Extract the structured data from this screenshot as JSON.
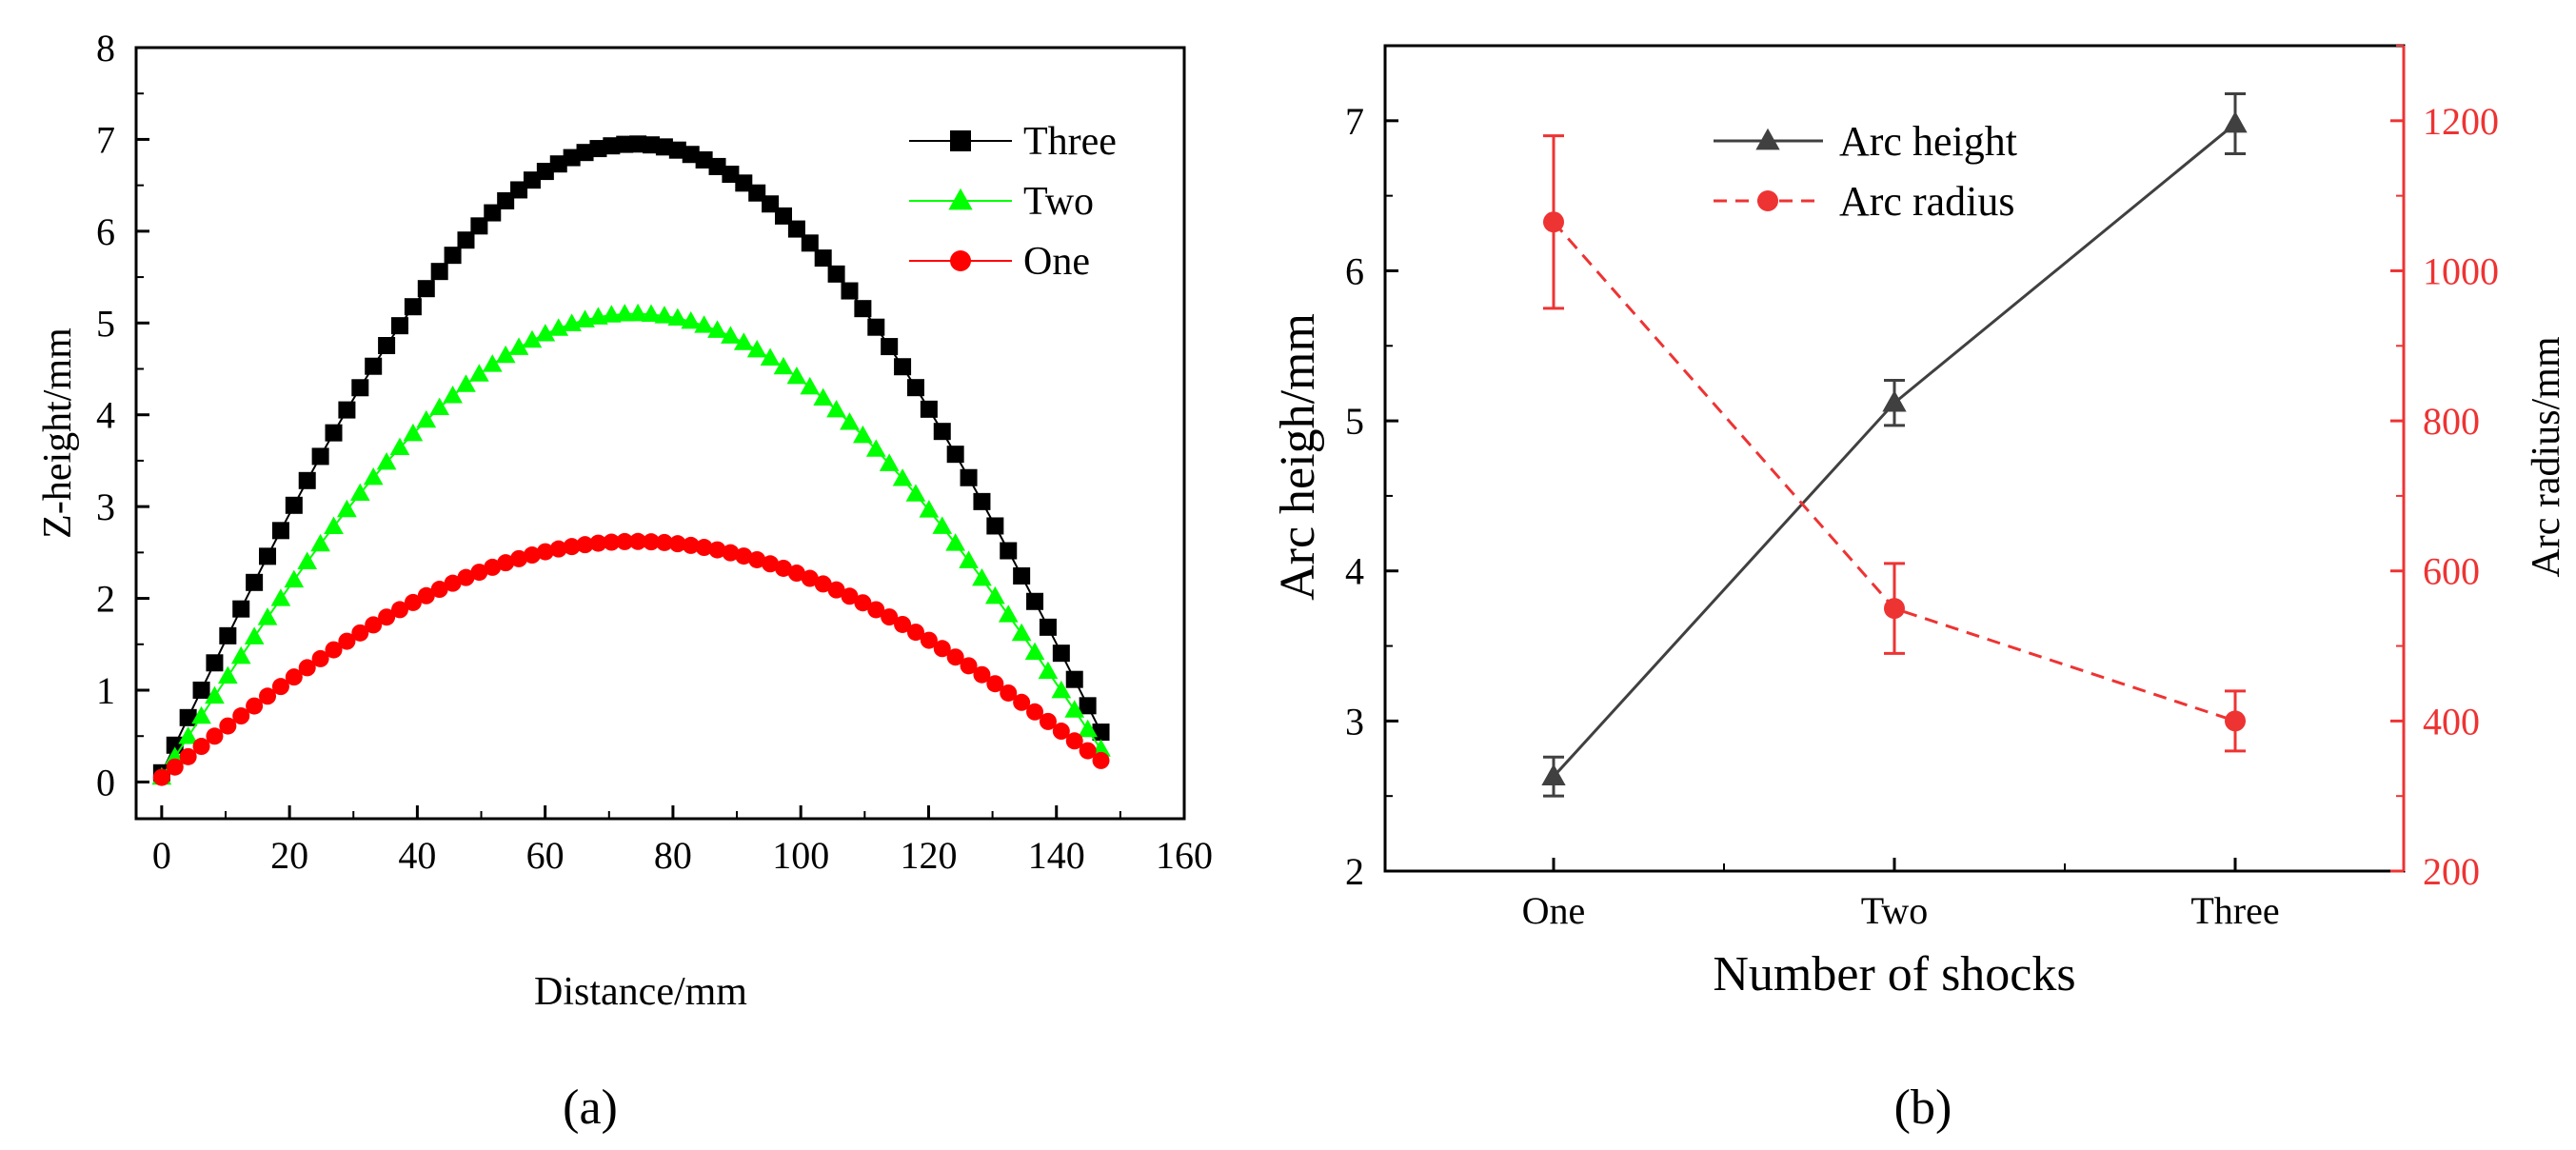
{
  "chart_data": [
    {
      "id": "a",
      "panel_label": "(a)",
      "type": "scatter",
      "title": "",
      "xlabel": "Distance/mm",
      "ylabel": "Z-height/mm",
      "xlim": [
        -4,
        160
      ],
      "ylim": [
        -0.4,
        8
      ],
      "xticks": [
        "0",
        "20",
        "40",
        "60",
        "80",
        "100",
        "120",
        "140",
        "160"
      ],
      "yticks": [
        "0",
        "1",
        "2",
        "3",
        "4",
        "5",
        "6",
        "7",
        "8"
      ],
      "legend_position": "top-right",
      "series": [
        {
          "name": "Three",
          "color": "#000000",
          "marker": "square",
          "x_start": 0,
          "x_step": 2.07,
          "count": 72,
          "peak": 6.95,
          "start": 0.1,
          "end": 0.4,
          "peak_x": 74
        },
        {
          "name": "Two",
          "color": "#00ff00",
          "marker": "triangle",
          "x_start": 0,
          "x_step": 2.07,
          "count": 72,
          "peak": 5.1,
          "start": 0.05,
          "end": 0.25,
          "peak_x": 74
        },
        {
          "name": "One",
          "color": "#ff0000",
          "marker": "circle",
          "x_start": 0,
          "x_step": 2.07,
          "count": 72,
          "peak": 2.62,
          "start": 0.05,
          "end": 0.18,
          "peak_x": 74
        }
      ]
    },
    {
      "id": "b",
      "panel_label": "(b)",
      "type": "line",
      "title": "",
      "xlabel": "Number of shocks",
      "ylabel": "Arc heigh/mm",
      "ylabel_right": "Arc radius/mm",
      "categories": [
        "One",
        "Two",
        "Three"
      ],
      "ylim": [
        2,
        7.5
      ],
      "ylim_right": [
        200,
        1300
      ],
      "yticks": [
        "2",
        "3",
        "4",
        "5",
        "6",
        "7"
      ],
      "yticks_right": [
        "200",
        "400",
        "600",
        "800",
        "1000",
        "1200"
      ],
      "legend_position": "top-center",
      "series": [
        {
          "name": "Arc height",
          "color": "#404040",
          "axis": "left",
          "style": "solid",
          "marker": "triangle",
          "values": [
            2.63,
            5.12,
            6.98
          ],
          "errors": [
            0.13,
            0.15,
            0.2
          ]
        },
        {
          "name": "Arc radius",
          "color": "#ee3333",
          "axis": "right",
          "style": "dashed",
          "marker": "circle",
          "values": [
            1065,
            550,
            400
          ],
          "errors": [
            115,
            60,
            40
          ]
        }
      ]
    }
  ]
}
